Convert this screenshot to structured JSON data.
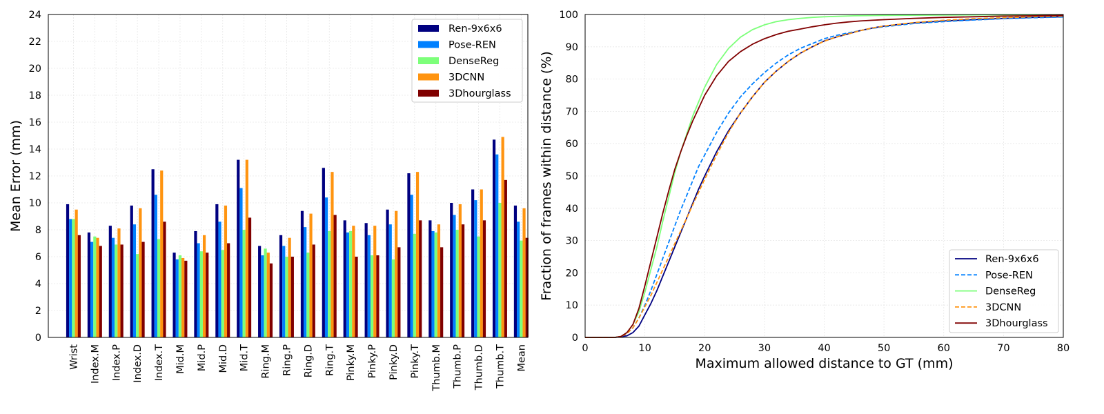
{
  "chart_data": [
    {
      "type": "bar",
      "xlabel": "",
      "ylabel": "Mean Error (mm)",
      "ylim": [
        0,
        24
      ],
      "yticks": [
        0,
        2,
        4,
        6,
        8,
        10,
        12,
        14,
        16,
        18,
        20,
        22,
        24
      ],
      "grid": true,
      "legend_position": "top-right",
      "categories": [
        "Wrist",
        "Index.M",
        "Index.P",
        "Index.D",
        "Index.T",
        "Mid.M",
        "Mid.P",
        "Mid.D",
        "Mid.T",
        "Ring.M",
        "Ring.P",
        "Ring.D",
        "Ring.T",
        "Pinky.M",
        "Pinky.P",
        "Pinky.D",
        "Pinky.T",
        "Thumb.M",
        "Thumb.P",
        "Thumb.D",
        "Thumb.T",
        "Mean"
      ],
      "series": [
        {
          "name": "Ren-9x6x6",
          "color": "#000080",
          "values": [
            9.9,
            7.8,
            8.3,
            9.8,
            12.5,
            6.3,
            7.9,
            9.9,
            13.2,
            6.8,
            7.6,
            9.4,
            12.6,
            8.7,
            8.5,
            9.5,
            12.2,
            8.7,
            10.0,
            11.0,
            14.7,
            9.8
          ]
        },
        {
          "name": "Pose-REN",
          "color": "#0080ff",
          "values": [
            8.8,
            7.1,
            7.4,
            8.4,
            10.6,
            5.8,
            7.0,
            8.6,
            11.1,
            6.1,
            6.8,
            8.2,
            10.4,
            7.8,
            7.6,
            8.4,
            10.6,
            7.9,
            9.1,
            10.2,
            13.6,
            8.6
          ]
        },
        {
          "name": "DenseReg",
          "color": "#7dff7a",
          "values": [
            8.8,
            7.5,
            6.9,
            6.2,
            7.3,
            6.1,
            6.4,
            6.5,
            8.0,
            6.6,
            6.0,
            6.3,
            7.9,
            7.9,
            6.1,
            5.8,
            7.7,
            7.8,
            8.0,
            7.5,
            10.0,
            7.2
          ]
        },
        {
          "name": "3DCNN",
          "color": "#ff9410",
          "values": [
            9.5,
            7.4,
            8.1,
            9.6,
            12.4,
            5.9,
            7.6,
            9.8,
            13.2,
            6.3,
            7.4,
            9.2,
            12.3,
            8.3,
            8.3,
            9.4,
            12.3,
            8.4,
            9.9,
            11.0,
            14.9,
            9.6
          ]
        },
        {
          "name": "3Dhourglass",
          "color": "#800000",
          "values": [
            7.6,
            6.8,
            6.9,
            7.1,
            8.6,
            5.7,
            6.3,
            7.0,
            8.9,
            5.5,
            6.0,
            6.9,
            9.1,
            6.0,
            6.1,
            6.7,
            8.7,
            6.7,
            8.4,
            8.7,
            11.7,
            7.4
          ]
        }
      ]
    },
    {
      "type": "line",
      "xlabel": "Maximum allowed distance to GT (mm)",
      "ylabel": "Fraction of frames within distance (%)",
      "xlim": [
        0,
        80
      ],
      "ylim": [
        0,
        100
      ],
      "xticks": [
        0,
        10,
        20,
        30,
        40,
        50,
        60,
        70,
        80
      ],
      "yticks": [
        0,
        10,
        20,
        30,
        40,
        50,
        60,
        70,
        80,
        90,
        100
      ],
      "grid": true,
      "legend_position": "bottom-right",
      "series": [
        {
          "name": "Ren-9x6x6",
          "color": "#000080",
          "style": "solid",
          "x": [
            0,
            5,
            7,
            8,
            9,
            10,
            11,
            12,
            13,
            14,
            15,
            16,
            17,
            18,
            19,
            20,
            22,
            24,
            26,
            28,
            30,
            32,
            34,
            36,
            38,
            40,
            42,
            44,
            46,
            48,
            50,
            55,
            60,
            65,
            70,
            75,
            80
          ],
          "y": [
            0,
            0,
            0.5,
            1.5,
            3.5,
            7,
            10.5,
            14.5,
            19,
            23.5,
            28,
            32.5,
            37,
            41.5,
            46,
            50,
            57.5,
            64,
            69.5,
            74.5,
            79,
            82.5,
            85.5,
            88,
            90,
            91.8,
            93,
            94,
            95,
            95.8,
            96.4,
            97.4,
            98.0,
            98.4,
            98.8,
            99.1,
            99.3
          ]
        },
        {
          "name": "Pose-REN",
          "color": "#0080ff",
          "style": "dashed",
          "x": [
            0,
            5,
            6,
            7,
            8,
            9,
            10,
            11,
            12,
            13,
            14,
            15,
            16,
            17,
            18,
            19,
            20,
            22,
            24,
            26,
            28,
            30,
            32,
            34,
            36,
            38,
            40,
            42,
            44,
            46,
            48,
            50,
            55,
            60,
            65,
            70,
            75,
            80
          ],
          "y": [
            0,
            0,
            0.3,
            1.2,
            3,
            6,
            10,
            14.5,
            19.5,
            24.5,
            29.5,
            34.5,
            39.5,
            44,
            48.5,
            53,
            56.5,
            63.5,
            69.5,
            74.5,
            78.5,
            82,
            85,
            87.5,
            89.5,
            91,
            92.5,
            93.5,
            94.3,
            95,
            95.7,
            96.2,
            97.2,
            97.8,
            98.3,
            98.7,
            99.0,
            99.2
          ]
        },
        {
          "name": "DenseReg",
          "color": "#7dff7a",
          "style": "solid",
          "x": [
            0,
            5,
            6,
            7,
            8,
            9,
            10,
            11,
            12,
            13,
            14,
            15,
            16,
            17,
            18,
            19,
            20,
            22,
            24,
            26,
            28,
            30,
            32,
            34,
            36,
            38,
            40,
            45,
            50,
            60,
            70,
            80
          ],
          "y": [
            0,
            0,
            0.3,
            1.5,
            4,
            8,
            14,
            21,
            28,
            36,
            43.5,
            51,
            57.5,
            63,
            68.5,
            73,
            77.5,
            84.5,
            89.5,
            93,
            95.3,
            96.8,
            97.8,
            98.4,
            98.8,
            99.1,
            99.3,
            99.6,
            99.7,
            99.8,
            99.9,
            99.9
          ]
        },
        {
          "name": "3DCNN",
          "color": "#ff9410",
          "style": "dashed",
          "x": [
            0,
            5,
            6,
            7,
            8,
            9,
            10,
            11,
            12,
            13,
            14,
            15,
            16,
            17,
            18,
            19,
            20,
            22,
            24,
            26,
            28,
            30,
            32,
            34,
            36,
            38,
            40,
            42,
            44,
            46,
            48,
            50,
            55,
            60,
            65,
            70,
            75,
            80
          ],
          "y": [
            0,
            0,
            0.3,
            1.2,
            3,
            6,
            9.5,
            13,
            17,
            21,
            25,
            29,
            33,
            37,
            41,
            45,
            49,
            56.5,
            63.5,
            69.5,
            74.5,
            79,
            82.5,
            85.5,
            88,
            90,
            91.7,
            93,
            94,
            95,
            95.8,
            96.4,
            97.5,
            98.2,
            98.7,
            99.0,
            99.3,
            99.5
          ]
        },
        {
          "name": "3Dhourglass",
          "color": "#800000",
          "style": "solid",
          "x": [
            0,
            5,
            6,
            7,
            8,
            9,
            10,
            11,
            12,
            13,
            14,
            15,
            16,
            17,
            18,
            19,
            20,
            22,
            24,
            26,
            28,
            30,
            32,
            34,
            36,
            38,
            40,
            42,
            44,
            46,
            48,
            50,
            55,
            60,
            65,
            70,
            75,
            80
          ],
          "y": [
            0,
            0,
            0.3,
            1.5,
            4,
            9,
            16,
            23.5,
            31,
            38.5,
            45.5,
            52,
            57.5,
            62.5,
            67,
            71,
            75,
            81,
            85.5,
            88.5,
            90.8,
            92.5,
            93.8,
            94.8,
            95.5,
            96.2,
            96.8,
            97.3,
            97.7,
            98.0,
            98.2,
            98.4,
            98.8,
            99.1,
            99.3,
            99.5,
            99.6,
            99.7
          ]
        }
      ]
    }
  ]
}
